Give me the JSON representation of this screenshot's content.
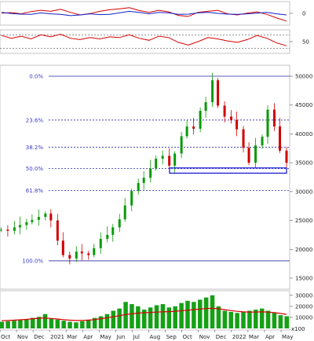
{
  "chart_data": [
    {
      "type": "line",
      "panel": "macd",
      "series": [
        {
          "color": "#d60000",
          "values": [
            5,
            15,
            -10,
            35,
            60,
            40,
            80,
            20,
            -30,
            -5,
            40,
            70,
            90,
            110,
            55,
            20,
            60,
            30,
            -40,
            -60,
            20,
            40,
            60,
            -10,
            -30,
            5,
            30,
            -20,
            -90,
            -150
          ]
        },
        {
          "color": "#1020c8",
          "values": [
            20,
            -5,
            -15,
            -20,
            10,
            -10,
            -20,
            -45,
            -30,
            -10,
            -25,
            -20,
            10,
            40,
            20,
            -10,
            20,
            10,
            -20,
            -15,
            10,
            20,
            0,
            -15,
            -20,
            -10,
            5,
            20,
            -10,
            -30
          ]
        }
      ],
      "yticks": [
        {
          "v": 0,
          "label": "0"
        }
      ],
      "ylim": [
        -200,
        200
      ]
    },
    {
      "type": "line",
      "panel": "rsi",
      "series": [
        {
          "color": "#d60000",
          "values": [
            68,
            60,
            66,
            58,
            70,
            64,
            72,
            60,
            56,
            62,
            58,
            64,
            62,
            70,
            60,
            54,
            66,
            62,
            48,
            40,
            50,
            62,
            58,
            52,
            48,
            56,
            68,
            60,
            46,
            38
          ]
        }
      ],
      "hlines": [
        70,
        30
      ],
      "yticks": [
        {
          "v": 50,
          "label": "50"
        }
      ],
      "ylim": [
        20,
        80
      ]
    },
    {
      "type": "candlestick",
      "panel": "price",
      "x_labels": [
        "Oct",
        "Nov",
        "Dec",
        "2021",
        "Mar",
        "Apr",
        "May",
        "Jun",
        "Jul",
        "Aug",
        "Sep",
        "Oct",
        "Nov",
        "Dec",
        "2022",
        "Mar",
        "Apr",
        "May"
      ],
      "close": [
        23400,
        23200,
        23800,
        24200,
        24700,
        25100,
        25600,
        26200,
        25000,
        21500,
        19000,
        18400,
        19600,
        19300,
        19000,
        20200,
        21800,
        22500,
        23800,
        25200,
        27600,
        30100,
        31500,
        32400,
        34000,
        35700,
        36200,
        34500,
        36600,
        39600,
        41300,
        40900,
        44000,
        45500,
        49300,
        44900,
        43000,
        42400,
        40800,
        37600,
        35000,
        38000,
        39500,
        44200,
        41300,
        37100,
        35000
      ],
      "ylim": [
        13500,
        51500
      ],
      "yticks": [
        {
          "v": 15000,
          "label": "15000"
        },
        {
          "v": 20000,
          "label": "20000"
        },
        {
          "v": 25000,
          "label": "25000"
        },
        {
          "v": 30000,
          "label": "30000"
        },
        {
          "v": 35000,
          "label": "35000"
        },
        {
          "v": 40000,
          "label": "40000"
        },
        {
          "v": 45000,
          "label": "45000"
        },
        {
          "v": 50000,
          "label": "50000"
        }
      ],
      "fibonacci": [
        {
          "label": "0.0%",
          "v": 50000
        },
        {
          "label": "23.6%",
          "v": 42400
        },
        {
          "label": "38.2%",
          "v": 37700
        },
        {
          "label": "50.0%",
          "v": 34000
        },
        {
          "label": "61.8%",
          "v": 30200
        },
        {
          "label": "100.0%",
          "v": 18000
        }
      ],
      "support_box": {
        "y_from": 33200,
        "y_to": 34100
      },
      "colors": {
        "up": "#0a9a0a",
        "down": "#d00000",
        "fib": "#2a2aa8"
      }
    },
    {
      "type": "bar",
      "panel": "volume",
      "values": [
        6000,
        6500,
        7000,
        7500,
        8000,
        9500,
        10500,
        13000,
        9000,
        8000,
        7000,
        6000,
        5500,
        6500,
        8000,
        9500,
        11000,
        13000,
        16000,
        18000,
        24000,
        22000,
        20000,
        17000,
        19000,
        21000,
        22000,
        19000,
        20000,
        23000,
        25000,
        24000,
        26000,
        28000,
        30000,
        20000,
        16000,
        15000,
        14000,
        15000,
        16000,
        17000,
        18000,
        16000,
        14000,
        12000,
        11000
      ],
      "ma_values": [
        7000,
        7200,
        7500,
        7800,
        8200,
        8800,
        9200,
        9500,
        9000,
        8500,
        8000,
        7500,
        7200,
        7200,
        7500,
        8000,
        8800,
        9600,
        10500,
        11500,
        12500,
        13200,
        13800,
        14200,
        14500,
        14800,
        15000,
        15200,
        15500,
        16000,
        16500,
        17000,
        17500,
        18000,
        18200,
        17800,
        17000,
        16200,
        15500,
        15000,
        14800,
        14800,
        15000,
        14800,
        14300,
        13600,
        12800
      ],
      "ylim": [
        0,
        32000
      ],
      "yticks": [
        {
          "v": 10000,
          "label": "10000"
        },
        {
          "v": 20000,
          "label": "20000"
        },
        {
          "v": 30000,
          "label": "30000"
        }
      ],
      "scale_label": "x100",
      "colors": {
        "bar": "#16a016",
        "ma": "#d60000"
      }
    }
  ]
}
